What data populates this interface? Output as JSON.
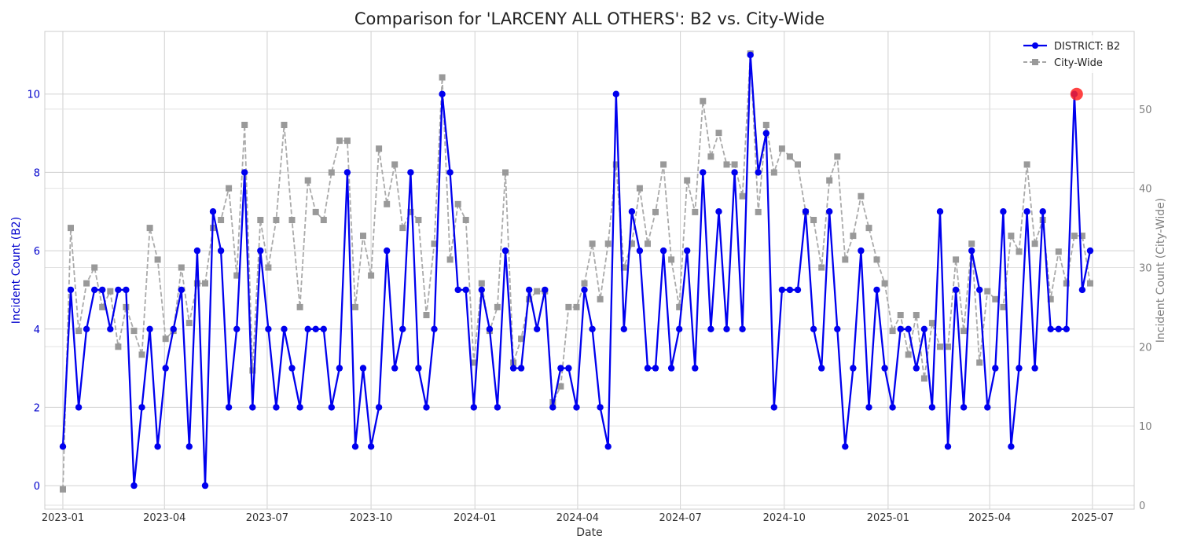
{
  "chart_data": {
    "type": "line",
    "title": "Comparison for 'LARCENY ALL OTHERS': B2 vs. City-Wide",
    "xlabel": "Date",
    "ylabel_left": "Incident Count (B2)",
    "ylabel_right": "Incident Count (City-Wide)",
    "x_range": [
      "2022-12-16",
      "2025-08-07"
    ],
    "ylim_left": [
      -0.6,
      11.6
    ],
    "ylim_right": [
      -0.5,
      59.8
    ],
    "x_ticks": [
      "2023-01",
      "2023-04",
      "2023-07",
      "2023-10",
      "2024-01",
      "2024-04",
      "2024-07",
      "2024-10",
      "2025-01",
      "2025-04",
      "2025-07"
    ],
    "y_ticks_left": [
      "0",
      "2",
      "4",
      "6",
      "8",
      "10"
    ],
    "y_ticks_right": [
      "0",
      "10",
      "20",
      "30",
      "40",
      "50"
    ],
    "grid": true,
    "legend_position": "top-right",
    "colors": {
      "district": "#0000ee",
      "city": "#999999",
      "highlight": "#ff2222",
      "left_axis_text": "#0000cc",
      "right_axis_text": "#808080"
    },
    "start_date": "2023-01-01",
    "interval_days": 7,
    "series": [
      {
        "name": "DISTRICT: B2",
        "values": [
          1,
          5,
          2,
          4,
          5,
          5,
          4,
          5,
          5,
          0,
          2,
          4,
          1,
          3,
          4,
          5,
          1,
          6,
          0,
          7,
          6,
          2,
          4,
          8,
          2,
          6,
          4,
          2,
          4,
          3,
          2,
          4,
          4,
          4,
          2,
          3,
          8,
          1,
          3,
          1,
          2,
          6,
          3,
          4,
          8,
          3,
          2,
          4,
          10,
          8,
          5,
          5,
          2,
          5,
          4,
          2,
          6,
          3,
          3,
          5,
          4,
          5,
          2,
          3,
          3,
          2,
          5,
          4,
          2,
          1,
          10,
          4,
          7,
          6,
          3,
          3,
          6,
          3,
          4,
          6,
          3,
          8,
          4,
          7,
          4,
          8,
          4,
          11,
          8,
          9,
          2,
          5,
          5,
          5,
          7,
          4,
          3,
          7,
          4,
          1,
          3,
          6,
          2,
          5,
          3,
          2,
          4,
          4,
          3,
          4,
          2,
          7,
          1,
          5,
          2,
          6,
          5,
          2,
          3,
          7,
          1,
          3,
          7,
          3,
          7,
          4,
          4,
          4,
          10,
          5,
          6
        ]
      },
      {
        "name": "City-Wide",
        "values": [
          2,
          35,
          22,
          28,
          30,
          25,
          27,
          20,
          25,
          22,
          19,
          35,
          31,
          21,
          22,
          30,
          23,
          28,
          28,
          35,
          36,
          40,
          29,
          48,
          17,
          36,
          30,
          36,
          48,
          36,
          25,
          41,
          37,
          36,
          42,
          46,
          46,
          25,
          34,
          29,
          45,
          38,
          43,
          35,
          37,
          36,
          24,
          33,
          54,
          31,
          38,
          36,
          18,
          28,
          22,
          25,
          42,
          18,
          21,
          26,
          27,
          27,
          13,
          15,
          25,
          25,
          28,
          33,
          26,
          33,
          43,
          30,
          33,
          40,
          33,
          37,
          43,
          31,
          25,
          41,
          37,
          51,
          44,
          47,
          43,
          43,
          39,
          57,
          37,
          48,
          42,
          45,
          44,
          43,
          37,
          36,
          30,
          41,
          44,
          31,
          34,
          39,
          35,
          31,
          28,
          22,
          24,
          19,
          24,
          16,
          23,
          20,
          20,
          31,
          22,
          33,
          18,
          27,
          26,
          25,
          34,
          32,
          43,
          33,
          36,
          26,
          32,
          28,
          34,
          34,
          28
        ]
      }
    ],
    "highlight_point": {
      "series": "DISTRICT: B2",
      "date": "2025-06-17",
      "value": 10
    }
  }
}
